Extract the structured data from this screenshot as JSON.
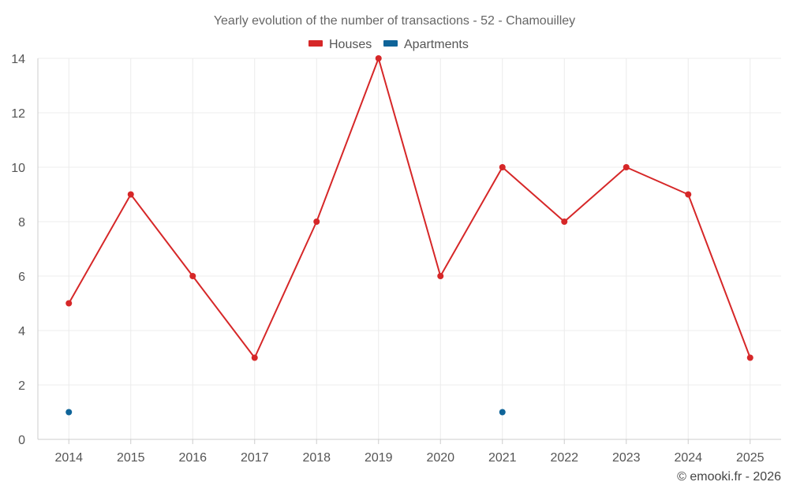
{
  "chart_data": {
    "type": "line",
    "title": "Yearly evolution of the number of transactions - 52 - Chamouilley",
    "categories": [
      "2014",
      "2015",
      "2016",
      "2017",
      "2018",
      "2019",
      "2020",
      "2021",
      "2022",
      "2023",
      "2024",
      "2025"
    ],
    "ylim": [
      0,
      14
    ],
    "yticks": [
      0,
      2,
      4,
      6,
      8,
      10,
      12,
      14
    ],
    "grid": true,
    "legend_position": "top-center",
    "series": [
      {
        "name": "Houses",
        "color": "#d62728",
        "values": [
          5,
          9,
          6,
          3,
          8,
          14,
          6,
          10,
          8,
          10,
          9,
          3
        ],
        "style": "line-markers"
      },
      {
        "name": "Apartments",
        "color": "#0f6499",
        "values": [
          1,
          null,
          null,
          null,
          null,
          null,
          null,
          1,
          null,
          null,
          null,
          null
        ],
        "style": "markers"
      }
    ],
    "credit": "© emooki.fr - 2026"
  }
}
